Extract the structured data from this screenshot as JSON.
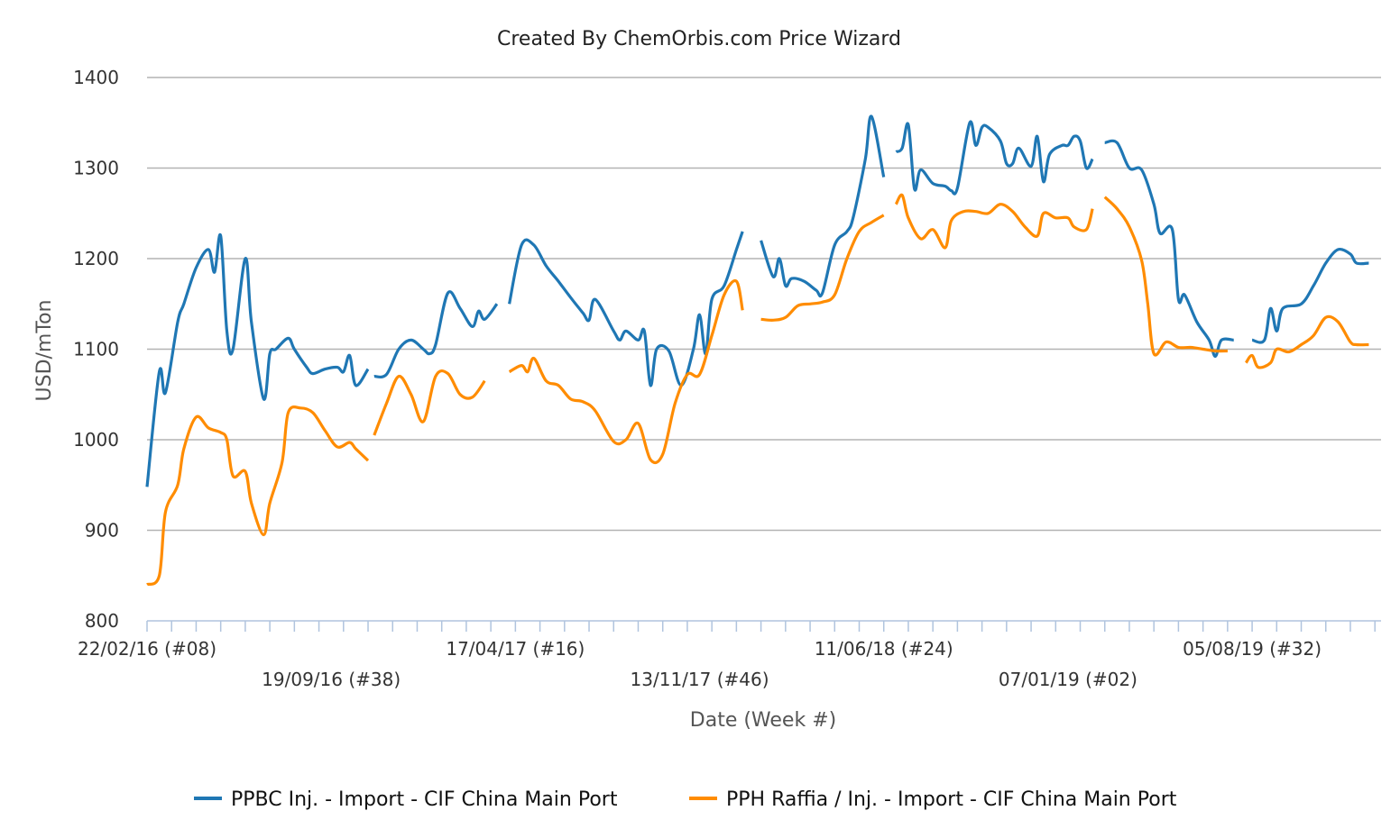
{
  "chart_data": {
    "type": "line",
    "title": "Created By ChemOrbis.com Price Wizard",
    "xlabel": "Date (Week #)",
    "ylabel": "USD/mTon",
    "ylim": [
      800,
      1400
    ],
    "yticks": [
      800,
      900,
      1000,
      1100,
      1200,
      1300,
      1400
    ],
    "x_range": [
      "2016-02-22",
      "2019-12-30"
    ],
    "x_tick_labels": [
      {
        "date": "2016-02-22",
        "label": "22/02/16 (#08)"
      },
      {
        "date": "2016-09-19",
        "label": "19/09/16 (#38)"
      },
      {
        "date": "2017-04-17",
        "label": "17/04/17 (#16)"
      },
      {
        "date": "2017-11-13",
        "label": "13/11/17 (#46)"
      },
      {
        "date": "2018-06-11",
        "label": "11/06/18 (#24)"
      },
      {
        "date": "2019-01-07",
        "label": "07/01/19 (#02)"
      },
      {
        "date": "2019-08-05",
        "label": "05/08/19 (#32)"
      }
    ],
    "grid": true,
    "legend_position": "bottom",
    "series": [
      {
        "name": "PPBC Inj. - Import - CIF China Main Port",
        "color": "#1f77b4",
        "segments": [
          [
            [
              "2016-02-22",
              948
            ],
            [
              "2016-03-07",
              1075
            ],
            [
              "2016-03-14",
              1052
            ],
            [
              "2016-03-28",
              1130
            ],
            [
              "2016-04-04",
              1150
            ],
            [
              "2016-04-18",
              1190
            ],
            [
              "2016-05-02",
              1210
            ],
            [
              "2016-05-09",
              1185
            ],
            [
              "2016-05-16",
              1225
            ],
            [
              "2016-05-23",
              1120
            ],
            [
              "2016-05-30",
              1100
            ],
            [
              "2016-06-13",
              1200
            ],
            [
              "2016-06-20",
              1130
            ],
            [
              "2016-07-04",
              1045
            ],
            [
              "2016-07-11",
              1095
            ],
            [
              "2016-07-18",
              1100
            ],
            [
              "2016-08-01",
              1112
            ],
            [
              "2016-08-08",
              1100
            ],
            [
              "2016-08-22",
              1080
            ],
            [
              "2016-08-29",
              1073
            ],
            [
              "2016-09-12",
              1078
            ],
            [
              "2016-09-26",
              1080
            ],
            [
              "2016-10-03",
              1075
            ],
            [
              "2016-10-10",
              1093
            ],
            [
              "2016-10-17",
              1060
            ],
            [
              "2016-10-31",
              1078
            ]
          ],
          [
            [
              "2016-11-07",
              1070
            ],
            [
              "2016-11-21",
              1072
            ],
            [
              "2016-12-05",
              1100
            ],
            [
              "2016-12-19",
              1110
            ],
            [
              "2017-01-02",
              1100
            ],
            [
              "2017-01-09",
              1095
            ],
            [
              "2017-01-16",
              1105
            ],
            [
              "2017-01-30",
              1162
            ],
            [
              "2017-02-13",
              1145
            ],
            [
              "2017-02-27",
              1125
            ],
            [
              "2017-03-06",
              1142
            ],
            [
              "2017-03-13",
              1133
            ],
            [
              "2017-03-27",
              1150
            ]
          ],
          [
            [
              "2017-04-10",
              1150
            ],
            [
              "2017-04-24",
              1215
            ],
            [
              "2017-05-08",
              1215
            ],
            [
              "2017-05-22",
              1192
            ],
            [
              "2017-06-05",
              1175
            ],
            [
              "2017-06-19",
              1157
            ],
            [
              "2017-07-03",
              1140
            ],
            [
              "2017-07-10",
              1132
            ],
            [
              "2017-07-17",
              1155
            ],
            [
              "2017-08-07",
              1120
            ],
            [
              "2017-08-14",
              1110
            ],
            [
              "2017-08-21",
              1120
            ],
            [
              "2017-09-04",
              1110
            ],
            [
              "2017-09-11",
              1120
            ],
            [
              "2017-09-18",
              1060
            ],
            [
              "2017-09-25",
              1100
            ],
            [
              "2017-10-09",
              1098
            ],
            [
              "2017-10-23",
              1060
            ],
            [
              "2017-11-06",
              1100
            ],
            [
              "2017-11-13",
              1138
            ],
            [
              "2017-11-20",
              1095
            ],
            [
              "2017-11-27",
              1155
            ],
            [
              "2017-12-11",
              1170
            ],
            [
              "2017-12-25",
              1210
            ],
            [
              "2018-01-01",
              1230
            ]
          ],
          [
            [
              "2018-01-22",
              1220
            ],
            [
              "2018-02-05",
              1180
            ],
            [
              "2018-02-12",
              1200
            ],
            [
              "2018-02-19",
              1170
            ],
            [
              "2018-02-26",
              1178
            ],
            [
              "2018-03-12",
              1175
            ],
            [
              "2018-03-26",
              1165
            ],
            [
              "2018-04-02",
              1162
            ],
            [
              "2018-04-16",
              1215
            ],
            [
              "2018-04-30",
              1230
            ],
            [
              "2018-05-07",
              1245
            ],
            [
              "2018-05-21",
              1310
            ],
            [
              "2018-05-28",
              1357
            ],
            [
              "2018-06-11",
              1290
            ]
          ],
          [
            [
              "2018-06-25",
              1318
            ],
            [
              "2018-07-02",
              1322
            ],
            [
              "2018-07-09",
              1348
            ],
            [
              "2018-07-16",
              1277
            ],
            [
              "2018-07-23",
              1298
            ],
            [
              "2018-08-06",
              1283
            ],
            [
              "2018-08-20",
              1280
            ],
            [
              "2018-08-27",
              1275
            ],
            [
              "2018-09-03",
              1278
            ],
            [
              "2018-09-17",
              1350
            ],
            [
              "2018-09-24",
              1325
            ],
            [
              "2018-10-01",
              1345
            ],
            [
              "2018-10-08",
              1345
            ],
            [
              "2018-10-22",
              1330
            ],
            [
              "2018-10-29",
              1305
            ],
            [
              "2018-11-05",
              1305
            ],
            [
              "2018-11-12",
              1322
            ],
            [
              "2018-11-26",
              1302
            ],
            [
              "2018-12-03",
              1335
            ],
            [
              "2018-12-10",
              1285
            ],
            [
              "2018-12-17",
              1315
            ],
            [
              "2018-12-31",
              1325
            ],
            [
              "2019-01-07",
              1325
            ],
            [
              "2019-01-14",
              1335
            ],
            [
              "2019-01-21",
              1330
            ],
            [
              "2019-01-28",
              1300
            ],
            [
              "2019-02-04",
              1310
            ]
          ],
          [
            [
              "2019-02-18",
              1328
            ],
            [
              "2019-03-04",
              1328
            ],
            [
              "2019-03-18",
              1300
            ],
            [
              "2019-04-01",
              1298
            ],
            [
              "2019-04-15",
              1260
            ],
            [
              "2019-04-22",
              1228
            ],
            [
              "2019-05-06",
              1232
            ],
            [
              "2019-05-13",
              1155
            ],
            [
              "2019-05-20",
              1160
            ],
            [
              "2019-06-03",
              1130
            ],
            [
              "2019-06-17",
              1110
            ],
            [
              "2019-06-24",
              1092
            ],
            [
              "2019-07-01",
              1110
            ],
            [
              "2019-07-15",
              1110
            ]
          ],
          [
            [
              "2019-08-05",
              1110
            ],
            [
              "2019-08-19",
              1110
            ],
            [
              "2019-08-26",
              1145
            ],
            [
              "2019-09-02",
              1120
            ],
            [
              "2019-09-09",
              1145
            ],
            [
              "2019-09-30",
              1150
            ],
            [
              "2019-10-14",
              1170
            ],
            [
              "2019-10-28",
              1195
            ],
            [
              "2019-11-11",
              1210
            ],
            [
              "2019-11-25",
              1205
            ],
            [
              "2019-12-02",
              1195
            ],
            [
              "2019-12-16",
              1195
            ]
          ]
        ]
      },
      {
        "name": "PPH Raffia / Inj. - Import - CIF China Main Port",
        "color": "#ff8c00",
        "segments": [
          [
            [
              "2016-02-22",
              840
            ],
            [
              "2016-03-07",
              850
            ],
            [
              "2016-03-14",
              920
            ],
            [
              "2016-03-28",
              950
            ],
            [
              "2016-04-04",
              990
            ],
            [
              "2016-04-18",
              1025
            ],
            [
              "2016-05-02",
              1013
            ],
            [
              "2016-05-16",
              1008
            ],
            [
              "2016-05-23",
              1000
            ],
            [
              "2016-05-30",
              960
            ],
            [
              "2016-06-13",
              965
            ],
            [
              "2016-06-20",
              930
            ],
            [
              "2016-07-04",
              895
            ],
            [
              "2016-07-11",
              930
            ],
            [
              "2016-07-25",
              975
            ],
            [
              "2016-08-01",
              1030
            ],
            [
              "2016-08-15",
              1035
            ],
            [
              "2016-08-29",
              1030
            ],
            [
              "2016-09-12",
              1010
            ],
            [
              "2016-09-26",
              992
            ],
            [
              "2016-10-10",
              997
            ],
            [
              "2016-10-17",
              990
            ],
            [
              "2016-10-31",
              977
            ]
          ],
          [
            [
              "2016-11-07",
              1005
            ],
            [
              "2016-11-21",
              1040
            ],
            [
              "2016-12-05",
              1070
            ],
            [
              "2016-12-19",
              1050
            ],
            [
              "2017-01-02",
              1020
            ],
            [
              "2017-01-16",
              1070
            ],
            [
              "2017-01-30",
              1073
            ],
            [
              "2017-02-13",
              1050
            ],
            [
              "2017-02-27",
              1047
            ],
            [
              "2017-03-13",
              1065
            ]
          ],
          [
            [
              "2017-04-10",
              1075
            ],
            [
              "2017-04-24",
              1082
            ],
            [
              "2017-05-01",
              1075
            ],
            [
              "2017-05-08",
              1090
            ],
            [
              "2017-05-22",
              1065
            ],
            [
              "2017-06-05",
              1060
            ],
            [
              "2017-06-19",
              1045
            ],
            [
              "2017-07-03",
              1042
            ],
            [
              "2017-07-17",
              1032
            ],
            [
              "2017-08-07",
              998
            ],
            [
              "2017-08-21",
              1000
            ],
            [
              "2017-09-04",
              1018
            ],
            [
              "2017-09-18",
              978
            ],
            [
              "2017-10-02",
              984
            ],
            [
              "2017-10-16",
              1040
            ],
            [
              "2017-10-30",
              1072
            ],
            [
              "2017-11-13",
              1072
            ],
            [
              "2017-11-27",
              1115
            ],
            [
              "2017-12-11",
              1160
            ],
            [
              "2017-12-25",
              1175
            ],
            [
              "2018-01-01",
              1143
            ]
          ],
          [
            [
              "2018-01-22",
              1133
            ],
            [
              "2018-02-05",
              1132
            ],
            [
              "2018-02-19",
              1135
            ],
            [
              "2018-03-05",
              1148
            ],
            [
              "2018-03-19",
              1150
            ],
            [
              "2018-04-02",
              1152
            ],
            [
              "2018-04-16",
              1160
            ],
            [
              "2018-04-30",
              1200
            ],
            [
              "2018-05-14",
              1230
            ],
            [
              "2018-05-28",
              1240
            ],
            [
              "2018-06-11",
              1248
            ]
          ],
          [
            [
              "2018-06-25",
              1260
            ],
            [
              "2018-07-02",
              1270
            ],
            [
              "2018-07-09",
              1245
            ],
            [
              "2018-07-23",
              1222
            ],
            [
              "2018-08-06",
              1232
            ],
            [
              "2018-08-20",
              1212
            ],
            [
              "2018-08-27",
              1242
            ],
            [
              "2018-09-10",
              1252
            ],
            [
              "2018-09-24",
              1252
            ],
            [
              "2018-10-08",
              1250
            ],
            [
              "2018-10-22",
              1260
            ],
            [
              "2018-11-05",
              1252
            ],
            [
              "2018-11-19",
              1235
            ],
            [
              "2018-12-03",
              1225
            ],
            [
              "2018-12-10",
              1250
            ],
            [
              "2018-12-24",
              1245
            ],
            [
              "2019-01-07",
              1245
            ],
            [
              "2019-01-14",
              1235
            ],
            [
              "2019-01-28",
              1232
            ],
            [
              "2019-02-04",
              1255
            ]
          ],
          [
            [
              "2019-02-18",
              1268
            ],
            [
              "2019-03-04",
              1255
            ],
            [
              "2019-03-18",
              1235
            ],
            [
              "2019-04-01",
              1198
            ],
            [
              "2019-04-08",
              1150
            ],
            [
              "2019-04-15",
              1095
            ],
            [
              "2019-04-29",
              1108
            ],
            [
              "2019-05-13",
              1102
            ],
            [
              "2019-05-27",
              1102
            ],
            [
              "2019-06-10",
              1100
            ],
            [
              "2019-06-24",
              1098
            ],
            [
              "2019-07-08",
              1098
            ]
          ],
          [
            [
              "2019-07-29",
              1085
            ],
            [
              "2019-08-05",
              1093
            ],
            [
              "2019-08-12",
              1080
            ],
            [
              "2019-08-26",
              1085
            ],
            [
              "2019-09-02",
              1100
            ],
            [
              "2019-09-16",
              1097
            ],
            [
              "2019-09-30",
              1105
            ],
            [
              "2019-10-14",
              1115
            ],
            [
              "2019-10-28",
              1135
            ],
            [
              "2019-11-11",
              1130
            ],
            [
              "2019-11-25",
              1108
            ],
            [
              "2019-12-02",
              1105
            ],
            [
              "2019-12-16",
              1105
            ]
          ]
        ]
      }
    ]
  }
}
